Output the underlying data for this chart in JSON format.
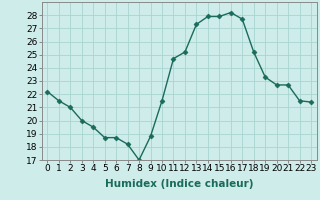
{
  "x": [
    0,
    1,
    2,
    3,
    4,
    5,
    6,
    7,
    8,
    9,
    10,
    11,
    12,
    13,
    14,
    15,
    16,
    17,
    18,
    19,
    20,
    21,
    22,
    23
  ],
  "y": [
    22.2,
    21.5,
    21.0,
    20.0,
    19.5,
    18.7,
    18.7,
    18.2,
    17.0,
    18.8,
    21.5,
    24.7,
    25.2,
    27.3,
    27.9,
    27.9,
    28.2,
    27.7,
    25.2,
    23.3,
    22.7,
    22.7,
    21.5,
    21.4
  ],
  "line_color": "#1a6b5a",
  "marker": "D",
  "markersize": 2.5,
  "linewidth": 1.0,
  "bg_color": "#ceecea",
  "grid_color": "#a8d5d0",
  "xlabel": "Humidex (Indice chaleur)",
  "xlabel_fontsize": 7.5,
  "tick_fontsize": 6.5,
  "xlim": [
    -0.5,
    23.5
  ],
  "ylim": [
    17,
    29
  ],
  "yticks": [
    17,
    18,
    19,
    20,
    21,
    22,
    23,
    24,
    25,
    26,
    27,
    28
  ],
  "xticks": [
    0,
    1,
    2,
    3,
    4,
    5,
    6,
    7,
    8,
    9,
    10,
    11,
    12,
    13,
    14,
    15,
    16,
    17,
    18,
    19,
    20,
    21,
    22,
    23
  ]
}
